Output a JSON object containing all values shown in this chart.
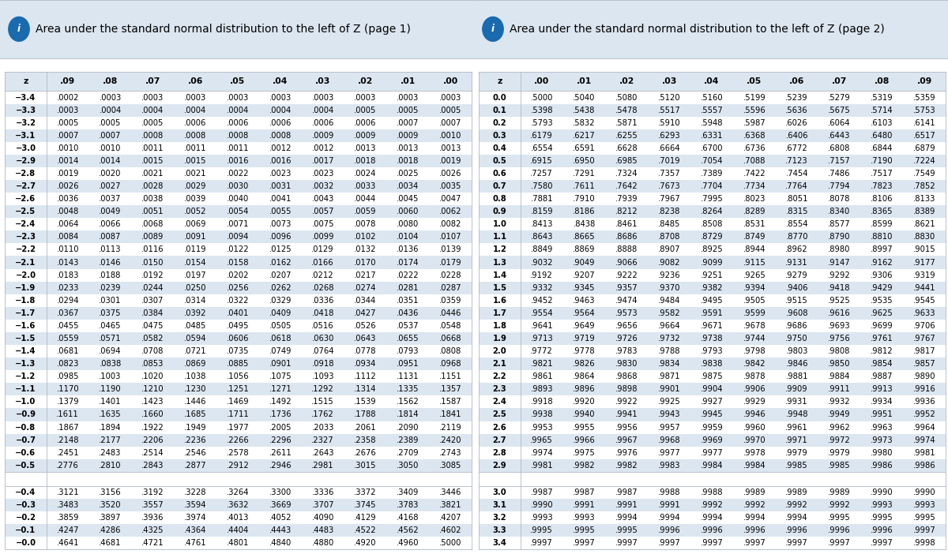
{
  "page1_title": "Area under the standard normal distribution to the left of Z (page 1)",
  "page2_title": "Area under the standard normal distribution to the left of Z (page 2)",
  "page1_headers": [
    "z",
    ".09",
    ".08",
    ".07",
    ".06",
    ".05",
    ".04",
    ".03",
    ".02",
    ".01",
    ".00"
  ],
  "page2_headers": [
    "z",
    ".00",
    ".01",
    ".02",
    ".03",
    ".04",
    ".05",
    ".06",
    ".07",
    ".08",
    ".09"
  ],
  "page1_main_rows": [
    [
      "−3.4",
      ".0002",
      ".0003",
      ".0003",
      ".0003",
      ".0003",
      ".0003",
      ".0003",
      ".0003",
      ".0003",
      ".0003"
    ],
    [
      "−3.3",
      ".0003",
      ".0004",
      ".0004",
      ".0004",
      ".0004",
      ".0004",
      ".0004",
      ".0005",
      ".0005",
      ".0005"
    ],
    [
      "−3.2",
      ".0005",
      ".0005",
      ".0005",
      ".0006",
      ".0006",
      ".0006",
      ".0006",
      ".0006",
      ".0007",
      ".0007"
    ],
    [
      "−3.1",
      ".0007",
      ".0007",
      ".0008",
      ".0008",
      ".0008",
      ".0008",
      ".0009",
      ".0009",
      ".0009",
      ".0010"
    ],
    [
      "−3.0",
      ".0010",
      ".0010",
      ".0011",
      ".0011",
      ".0011",
      ".0012",
      ".0012",
      ".0013",
      ".0013",
      ".0013"
    ],
    [
      "−2.9",
      ".0014",
      ".0014",
      ".0015",
      ".0015",
      ".0016",
      ".0016",
      ".0017",
      ".0018",
      ".0018",
      ".0019"
    ],
    [
      "−2.8",
      ".0019",
      ".0020",
      ".0021",
      ".0021",
      ".0022",
      ".0023",
      ".0023",
      ".0024",
      ".0025",
      ".0026"
    ],
    [
      "−2.7",
      ".0026",
      ".0027",
      ".0028",
      ".0029",
      ".0030",
      ".0031",
      ".0032",
      ".0033",
      ".0034",
      ".0035"
    ],
    [
      "−2.6",
      ".0036",
      ".0037",
      ".0038",
      ".0039",
      ".0040",
      ".0041",
      ".0043",
      ".0044",
      ".0045",
      ".0047"
    ],
    [
      "−2.5",
      ".0048",
      ".0049",
      ".0051",
      ".0052",
      ".0054",
      ".0055",
      ".0057",
      ".0059",
      ".0060",
      ".0062"
    ],
    [
      "−2.4",
      ".0064",
      ".0066",
      ".0068",
      ".0069",
      ".0071",
      ".0073",
      ".0075",
      ".0078",
      ".0080",
      ".0082"
    ],
    [
      "−2.3",
      ".0084",
      ".0087",
      ".0089",
      ".0091",
      ".0094",
      ".0096",
      ".0099",
      ".0102",
      ".0104",
      ".0107"
    ],
    [
      "−2.2",
      ".0110",
      ".0113",
      ".0116",
      ".0119",
      ".0122",
      ".0125",
      ".0129",
      ".0132",
      ".0136",
      ".0139"
    ],
    [
      "−2.1",
      ".0143",
      ".0146",
      ".0150",
      ".0154",
      ".0158",
      ".0162",
      ".0166",
      ".0170",
      ".0174",
      ".0179"
    ],
    [
      "−2.0",
      ".0183",
      ".0188",
      ".0192",
      ".0197",
      ".0202",
      ".0207",
      ".0212",
      ".0217",
      ".0222",
      ".0228"
    ],
    [
      "−1.9",
      ".0233",
      ".0239",
      ".0244",
      ".0250",
      ".0256",
      ".0262",
      ".0268",
      ".0274",
      ".0281",
      ".0287"
    ],
    [
      "−1.8",
      ".0294",
      ".0301",
      ".0307",
      ".0314",
      ".0322",
      ".0329",
      ".0336",
      ".0344",
      ".0351",
      ".0359"
    ],
    [
      "−1.7",
      ".0367",
      ".0375",
      ".0384",
      ".0392",
      ".0401",
      ".0409",
      ".0418",
      ".0427",
      ".0436",
      ".0446"
    ],
    [
      "−1.6",
      ".0455",
      ".0465",
      ".0475",
      ".0485",
      ".0495",
      ".0505",
      ".0516",
      ".0526",
      ".0537",
      ".0548"
    ],
    [
      "−1.5",
      ".0559",
      ".0571",
      ".0582",
      ".0594",
      ".0606",
      ".0618",
      ".0630",
      ".0643",
      ".0655",
      ".0668"
    ],
    [
      "−1.4",
      ".0681",
      ".0694",
      ".0708",
      ".0721",
      ".0735",
      ".0749",
      ".0764",
      ".0778",
      ".0793",
      ".0808"
    ],
    [
      "−1.3",
      ".0823",
      ".0838",
      ".0853",
      ".0869",
      ".0885",
      ".0901",
      ".0918",
      ".0934",
      ".0951",
      ".0968"
    ],
    [
      "−1.2",
      ".0985",
      ".1003",
      ".1020",
      ".1038",
      ".1056",
      ".1075",
      ".1093",
      ".1112",
      ".1131",
      ".1151"
    ],
    [
      "−1.1",
      ".1170",
      ".1190",
      ".1210",
      ".1230",
      ".1251",
      ".1271",
      ".1292",
      ".1314",
      ".1335",
      ".1357"
    ],
    [
      "−1.0",
      ".1379",
      ".1401",
      ".1423",
      ".1446",
      ".1469",
      ".1492",
      ".1515",
      ".1539",
      ".1562",
      ".1587"
    ],
    [
      "−0.9",
      ".1611",
      ".1635",
      ".1660",
      ".1685",
      ".1711",
      ".1736",
      ".1762",
      ".1788",
      ".1814",
      ".1841"
    ],
    [
      "−0.8",
      ".1867",
      ".1894",
      ".1922",
      ".1949",
      ".1977",
      ".2005",
      ".2033",
      ".2061",
      ".2090",
      ".2119"
    ],
    [
      "−0.7",
      ".2148",
      ".2177",
      ".2206",
      ".2236",
      ".2266",
      ".2296",
      ".2327",
      ".2358",
      ".2389",
      ".2420"
    ],
    [
      "−0.6",
      ".2451",
      ".2483",
      ".2514",
      ".2546",
      ".2578",
      ".2611",
      ".2643",
      ".2676",
      ".2709",
      ".2743"
    ],
    [
      "−0.5",
      ".2776",
      ".2810",
      ".2843",
      ".2877",
      ".2912",
      ".2946",
      ".2981",
      ".3015",
      ".3050",
      ".3085"
    ]
  ],
  "page1_bottom_rows": [
    [
      "−0.4",
      ".3121",
      ".3156",
      ".3192",
      ".3228",
      ".3264",
      ".3300",
      ".3336",
      ".3372",
      ".3409",
      ".3446"
    ],
    [
      "−0.3",
      ".3483",
      ".3520",
      ".3557",
      ".3594",
      ".3632",
      ".3669",
      ".3707",
      ".3745",
      ".3783",
      ".3821"
    ],
    [
      "−0.2",
      ".3859",
      ".3897",
      ".3936",
      ".3974",
      ".4013",
      ".4052",
      ".4090",
      ".4129",
      ".4168",
      ".4207"
    ],
    [
      "−0.1",
      ".4247",
      ".4286",
      ".4325",
      ".4364",
      ".4404",
      ".4443",
      ".4483",
      ".4522",
      ".4562",
      ".4602"
    ],
    [
      "−0.0",
      ".4641",
      ".4681",
      ".4721",
      ".4761",
      ".4801",
      ".4840",
      ".4880",
      ".4920",
      ".4960",
      ".5000"
    ]
  ],
  "page2_main_rows": [
    [
      "0.0",
      ".5000",
      ".5040",
      ".5080",
      ".5120",
      ".5160",
      ".5199",
      ".5239",
      ".5279",
      ".5319",
      ".5359"
    ],
    [
      "0.1",
      ".5398",
      ".5438",
      ".5478",
      ".5517",
      ".5557",
      ".5596",
      ".5636",
      ".5675",
      ".5714",
      ".5753"
    ],
    [
      "0.2",
      ".5793",
      ".5832",
      ".5871",
      ".5910",
      ".5948",
      ".5987",
      ".6026",
      ".6064",
      ".6103",
      ".6141"
    ],
    [
      "0.3",
      ".6179",
      ".6217",
      ".6255",
      ".6293",
      ".6331",
      ".6368",
      ".6406",
      ".6443",
      ".6480",
      ".6517"
    ],
    [
      "0.4",
      ".6554",
      ".6591",
      ".6628",
      ".6664",
      ".6700",
      ".6736",
      ".6772",
      ".6808",
      ".6844",
      ".6879"
    ],
    [
      "0.5",
      ".6915",
      ".6950",
      ".6985",
      ".7019",
      ".7054",
      ".7088",
      ".7123",
      ".7157",
      ".7190",
      ".7224"
    ],
    [
      "0.6",
      ".7257",
      ".7291",
      ".7324",
      ".7357",
      ".7389",
      ".7422",
      ".7454",
      ".7486",
      ".7517",
      ".7549"
    ],
    [
      "0.7",
      ".7580",
      ".7611",
      ".7642",
      ".7673",
      ".7704",
      ".7734",
      ".7764",
      ".7794",
      ".7823",
      ".7852"
    ],
    [
      "0.8",
      ".7881",
      ".7910",
      ".7939",
      ".7967",
      ".7995",
      ".8023",
      ".8051",
      ".8078",
      ".8106",
      ".8133"
    ],
    [
      "0.9",
      ".8159",
      ".8186",
      ".8212",
      ".8238",
      ".8264",
      ".8289",
      ".8315",
      ".8340",
      ".8365",
      ".8389"
    ],
    [
      "1.0",
      ".8413",
      ".8438",
      ".8461",
      ".8485",
      ".8508",
      ".8531",
      ".8554",
      ".8577",
      ".8599",
      ".8621"
    ],
    [
      "1.1",
      ".8643",
      ".8665",
      ".8686",
      ".8708",
      ".8729",
      ".8749",
      ".8770",
      ".8790",
      ".8810",
      ".8830"
    ],
    [
      "1.2",
      ".8849",
      ".8869",
      ".8888",
      ".8907",
      ".8925",
      ".8944",
      ".8962",
      ".8980",
      ".8997",
      ".9015"
    ],
    [
      "1.3",
      ".9032",
      ".9049",
      ".9066",
      ".9082",
      ".9099",
      ".9115",
      ".9131",
      ".9147",
      ".9162",
      ".9177"
    ],
    [
      "1.4",
      ".9192",
      ".9207",
      ".9222",
      ".9236",
      ".9251",
      ".9265",
      ".9279",
      ".9292",
      ".9306",
      ".9319"
    ],
    [
      "1.5",
      ".9332",
      ".9345",
      ".9357",
      ".9370",
      ".9382",
      ".9394",
      ".9406",
      ".9418",
      ".9429",
      ".9441"
    ],
    [
      "1.6",
      ".9452",
      ".9463",
      ".9474",
      ".9484",
      ".9495",
      ".9505",
      ".9515",
      ".9525",
      ".9535",
      ".9545"
    ],
    [
      "1.7",
      ".9554",
      ".9564",
      ".9573",
      ".9582",
      ".9591",
      ".9599",
      ".9608",
      ".9616",
      ".9625",
      ".9633"
    ],
    [
      "1.8",
      ".9641",
      ".9649",
      ".9656",
      ".9664",
      ".9671",
      ".9678",
      ".9686",
      ".9693",
      ".9699",
      ".9706"
    ],
    [
      "1.9",
      ".9713",
      ".9719",
      ".9726",
      ".9732",
      ".9738",
      ".9744",
      ".9750",
      ".9756",
      ".9761",
      ".9767"
    ],
    [
      "2.0",
      ".9772",
      ".9778",
      ".9783",
      ".9788",
      ".9793",
      ".9798",
      ".9803",
      ".9808",
      ".9812",
      ".9817"
    ],
    [
      "2.1",
      ".9821",
      ".9826",
      ".9830",
      ".9834",
      ".9838",
      ".9842",
      ".9846",
      ".9850",
      ".9854",
      ".9857"
    ],
    [
      "2.2",
      ".9861",
      ".9864",
      ".9868",
      ".9871",
      ".9875",
      ".9878",
      ".9881",
      ".9884",
      ".9887",
      ".9890"
    ],
    [
      "2.3",
      ".9893",
      ".9896",
      ".9898",
      ".9901",
      ".9904",
      ".9906",
      ".9909",
      ".9911",
      ".9913",
      ".9916"
    ],
    [
      "2.4",
      ".9918",
      ".9920",
      ".9922",
      ".9925",
      ".9927",
      ".9929",
      ".9931",
      ".9932",
      ".9934",
      ".9936"
    ],
    [
      "2.5",
      ".9938",
      ".9940",
      ".9941",
      ".9943",
      ".9945",
      ".9946",
      ".9948",
      ".9949",
      ".9951",
      ".9952"
    ],
    [
      "2.6",
      ".9953",
      ".9955",
      ".9956",
      ".9957",
      ".9959",
      ".9960",
      ".9961",
      ".9962",
      ".9963",
      ".9964"
    ],
    [
      "2.7",
      ".9965",
      ".9966",
      ".9967",
      ".9968",
      ".9969",
      ".9970",
      ".9971",
      ".9972",
      ".9973",
      ".9974"
    ],
    [
      "2.8",
      ".9974",
      ".9975",
      ".9976",
      ".9977",
      ".9977",
      ".9978",
      ".9979",
      ".9979",
      ".9980",
      ".9981"
    ],
    [
      "2.9",
      ".9981",
      ".9982",
      ".9982",
      ".9983",
      ".9984",
      ".9984",
      ".9985",
      ".9985",
      ".9986",
      ".9986"
    ]
  ],
  "page2_bottom_rows": [
    [
      "3.0",
      ".9987",
      ".9987",
      ".9987",
      ".9988",
      ".9988",
      ".9989",
      ".9989",
      ".9989",
      ".9990",
      ".9990"
    ],
    [
      "3.1",
      ".9990",
      ".9991",
      ".9991",
      ".9991",
      ".9992",
      ".9992",
      ".9992",
      ".9992",
      ".9993",
      ".9993"
    ],
    [
      "3.2",
      ".9993",
      ".9993",
      ".9994",
      ".9994",
      ".9994",
      ".9994",
      ".9994",
      ".9995",
      ".9995",
      ".9995"
    ],
    [
      "3.3",
      ".9995",
      ".9995",
      ".9995",
      ".9996",
      ".9996",
      ".9996",
      ".9996",
      ".9996",
      ".9996",
      ".9997"
    ],
    [
      "3.4",
      ".9997",
      ".9997",
      ".9997",
      ".9997",
      ".9997",
      ".9997",
      ".9997",
      ".9997",
      ".9997",
      ".9998"
    ]
  ],
  "bg_color": "#ffffff",
  "header_bg": "#dce6f1",
  "alt_row_bg": "#dce6f1",
  "title_bg": "#dce6f1",
  "border_color": "#b0b8c4",
  "text_color": "#000000",
  "title_color": "#1f497d",
  "font_size": 7.2,
  "header_font_size": 7.8,
  "title_font_size": 10.0
}
